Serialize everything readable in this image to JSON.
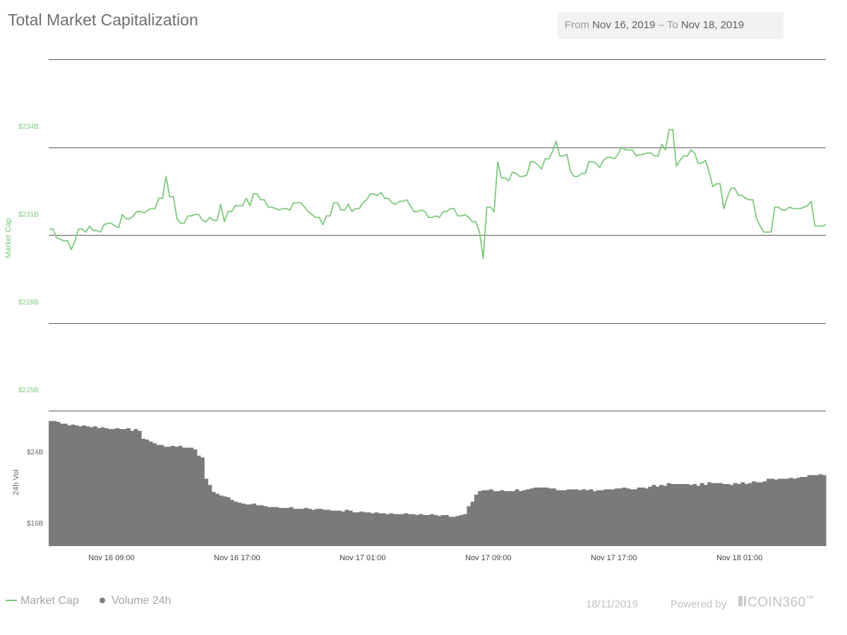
{
  "header": {
    "title": "Total Market Capitalization",
    "range": {
      "from_label": "From",
      "from_value": "Nov 16, 2019",
      "separator": "–",
      "to_label": "To",
      "to_value": "Nov 18, 2019"
    }
  },
  "chart_data": [
    {
      "type": "line",
      "ylabel": "Market Cap",
      "color": "#7ec97e",
      "yticks": [
        "$234B",
        "$231B",
        "$228B",
        "$225B"
      ],
      "ylim": [
        225,
        237
      ],
      "x_ticks": [
        "Nov 16 09:00",
        "Nov 16 17:00",
        "Nov 17 01:00",
        "Nov 17 09:00",
        "Nov 17 17:00",
        "Nov 18 01:00"
      ],
      "x_range": [
        "Nov 16 05:00",
        "Nov 18 06:30"
      ],
      "series": [
        {
          "values": [
            231.2,
            231.2,
            230.9,
            230.85,
            230.8,
            230.8,
            230.5,
            230.8,
            231.2,
            231.2,
            231.1,
            231.3,
            231.15,
            231.15,
            231.1,
            231.35,
            231.4,
            231.4,
            231.3,
            231.25,
            231.7,
            231.55,
            231.55,
            231.65,
            231.8,
            231.8,
            231.75,
            231.85,
            231.9,
            231.9,
            232.25,
            232.25,
            233.0,
            232.3,
            232.3,
            231.55,
            231.4,
            231.4,
            231.65,
            231.65,
            231.7,
            231.7,
            231.5,
            231.45,
            231.6,
            231.5,
            231.5,
            232.05,
            231.45,
            231.8,
            231.8,
            232.0,
            232.0,
            232.0,
            232.25,
            232.0,
            232.4,
            232.4,
            232.2,
            232.2,
            231.95,
            231.95,
            231.9,
            231.85,
            231.9,
            231.9,
            231.85,
            232.1,
            232.1,
            232.1,
            231.95,
            231.8,
            231.7,
            231.6,
            231.6,
            231.35,
            231.65,
            231.65,
            232.1,
            232.1,
            231.85,
            231.85,
            232.05,
            231.8,
            231.9,
            231.9,
            232.1,
            232.2,
            232.4,
            232.4,
            232.35,
            232.45,
            232.25,
            232.25,
            232.1,
            232.05,
            232.15,
            232.15,
            232.2,
            232.0,
            231.8,
            231.8,
            231.85,
            231.8,
            231.6,
            231.6,
            231.65,
            231.6,
            231.8,
            231.8,
            231.9,
            231.9,
            231.65,
            231.65,
            231.7,
            231.6,
            231.45,
            231.45,
            231.1,
            230.2,
            231.95,
            231.95,
            231.8,
            233.5,
            232.95,
            232.95,
            232.85,
            233.15,
            233.1,
            233.0,
            233.0,
            233.05,
            233.5,
            233.5,
            233.4,
            233.25,
            233.6,
            233.6,
            233.85,
            234.2,
            233.7,
            233.7,
            233.75,
            233.15,
            233.0,
            233.0,
            233.1,
            233.1,
            233.5,
            233.5,
            233.45,
            233.3,
            233.55,
            233.65,
            233.65,
            233.6,
            233.75,
            234.0,
            233.9,
            233.9,
            233.9,
            233.7,
            233.75,
            233.75,
            233.8,
            233.8,
            233.7,
            233.7,
            234.1,
            233.9,
            234.6,
            234.6,
            233.35,
            233.55,
            233.7,
            233.7,
            233.9,
            233.8,
            233.45,
            233.45,
            233.55,
            233.15,
            232.65,
            232.75,
            232.75,
            231.9,
            232.3,
            232.6,
            232.6,
            232.35,
            232.35,
            232.25,
            232.2,
            232.2,
            231.55,
            231.3,
            231.1,
            231.1,
            231.1,
            231.95,
            231.95,
            231.85,
            231.85,
            231.95,
            231.9,
            231.9,
            231.9,
            231.95,
            232.0,
            232.15,
            231.3,
            231.3,
            231.3,
            231.35
          ]
        }
      ]
    },
    {
      "type": "bar",
      "ylabel": "24h Vol",
      "color": "#7a7a7a",
      "yticks": [
        "$24B",
        "$16B"
      ],
      "ylim": [
        13.4,
        27.4
      ],
      "values": [
        27.5,
        27.5,
        27.4,
        27.2,
        27.2,
        27.0,
        27.1,
        27.0,
        26.9,
        27.0,
        26.9,
        26.8,
        26.9,
        26.7,
        26.8,
        26.7,
        26.6,
        26.6,
        26.7,
        26.6,
        26.6,
        26.7,
        26.4,
        26.6,
        26.4,
        25.5,
        25.4,
        25.2,
        25.0,
        24.8,
        24.8,
        24.6,
        24.6,
        24.7,
        24.6,
        24.7,
        24.5,
        24.5,
        24.5,
        24.3,
        23.6,
        23.4,
        21.0,
        20.3,
        19.5,
        19.3,
        19.1,
        19.0,
        18.9,
        18.6,
        18.4,
        18.3,
        18.2,
        18.1,
        18.1,
        18.2,
        18.0,
        18.0,
        17.9,
        17.8,
        17.8,
        17.8,
        17.7,
        17.7,
        17.7,
        17.8,
        17.6,
        17.6,
        17.6,
        17.7,
        17.6,
        17.5,
        17.6,
        17.6,
        17.5,
        17.5,
        17.4,
        17.4,
        17.4,
        17.3,
        17.5,
        17.4,
        17.2,
        17.2,
        17.3,
        17.2,
        17.2,
        17.1,
        17.2,
        17.1,
        17.1,
        17.0,
        17.1,
        17.0,
        17.0,
        17.0,
        17.1,
        17.0,
        17.0,
        16.9,
        17.0,
        16.9,
        16.9,
        17.0,
        16.9,
        16.8,
        16.9,
        16.9,
        16.7,
        16.7,
        16.8,
        16.9,
        17.0,
        17.9,
        18.4,
        19.2,
        19.6,
        19.7,
        19.7,
        19.8,
        19.6,
        19.6,
        19.7,
        19.6,
        19.6,
        19.6,
        19.8,
        19.6,
        19.7,
        19.8,
        19.9,
        20.0,
        20.0,
        20.0,
        20.0,
        19.9,
        19.9,
        19.7,
        19.7,
        19.7,
        19.8,
        19.8,
        19.8,
        19.7,
        19.8,
        19.7,
        19.8,
        19.6,
        19.7,
        19.7,
        19.8,
        19.8,
        19.8,
        19.9,
        19.9,
        20.0,
        19.9,
        19.8,
        19.8,
        20.0,
        20.0,
        19.9,
        20.1,
        20.3,
        20.1,
        20.3,
        20.2,
        20.5,
        20.4,
        20.4,
        20.4,
        20.4,
        20.4,
        20.3,
        20.4,
        20.2,
        20.5,
        20.3,
        20.6,
        20.5,
        20.5,
        20.5,
        20.4,
        20.4,
        20.3,
        20.5,
        20.4,
        20.6,
        20.4,
        20.5,
        20.7,
        20.6,
        20.6,
        20.7,
        21.0,
        21.0,
        20.9,
        21.0,
        21.0,
        21.0,
        21.1,
        21.0,
        21.1,
        21.2,
        21.2,
        21.4,
        21.4,
        21.4,
        21.5,
        21.4
      ]
    }
  ],
  "legend": {
    "market_cap": "Market Cap",
    "volume": "Volume 24h"
  },
  "footer": {
    "date": "18/11/2019",
    "powered": "Powered by",
    "logo_text": "COIN360",
    "logo_tm": "™"
  }
}
